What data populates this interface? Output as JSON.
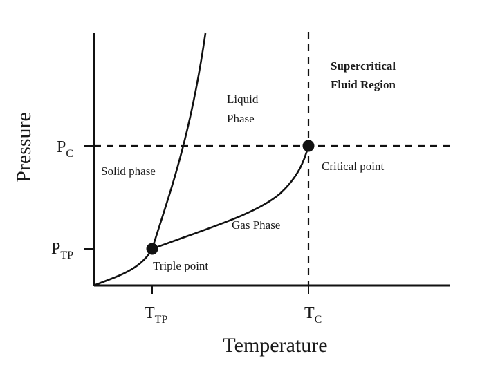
{
  "axes": {
    "x_title": "Temperature",
    "y_title": "Pressure"
  },
  "ticks": {
    "t_tp": {
      "main": "T",
      "sub": "TP"
    },
    "t_c": {
      "main": "T",
      "sub": "C"
    },
    "p_c": {
      "main": "P",
      "sub": "C"
    },
    "p_tp": {
      "main": "P",
      "sub": "TP"
    }
  },
  "regions": {
    "supercritical_line1": "Supercritical",
    "supercritical_line2": "Fluid Region",
    "liquid_line1": "Liquid",
    "liquid_line2": "Phase",
    "solid": "Solid phase",
    "gas": "Gas Phase"
  },
  "points": {
    "critical": "Critical point",
    "triple": "Triple point"
  },
  "colors": {
    "line": "#111111",
    "background": "#ffffff"
  }
}
